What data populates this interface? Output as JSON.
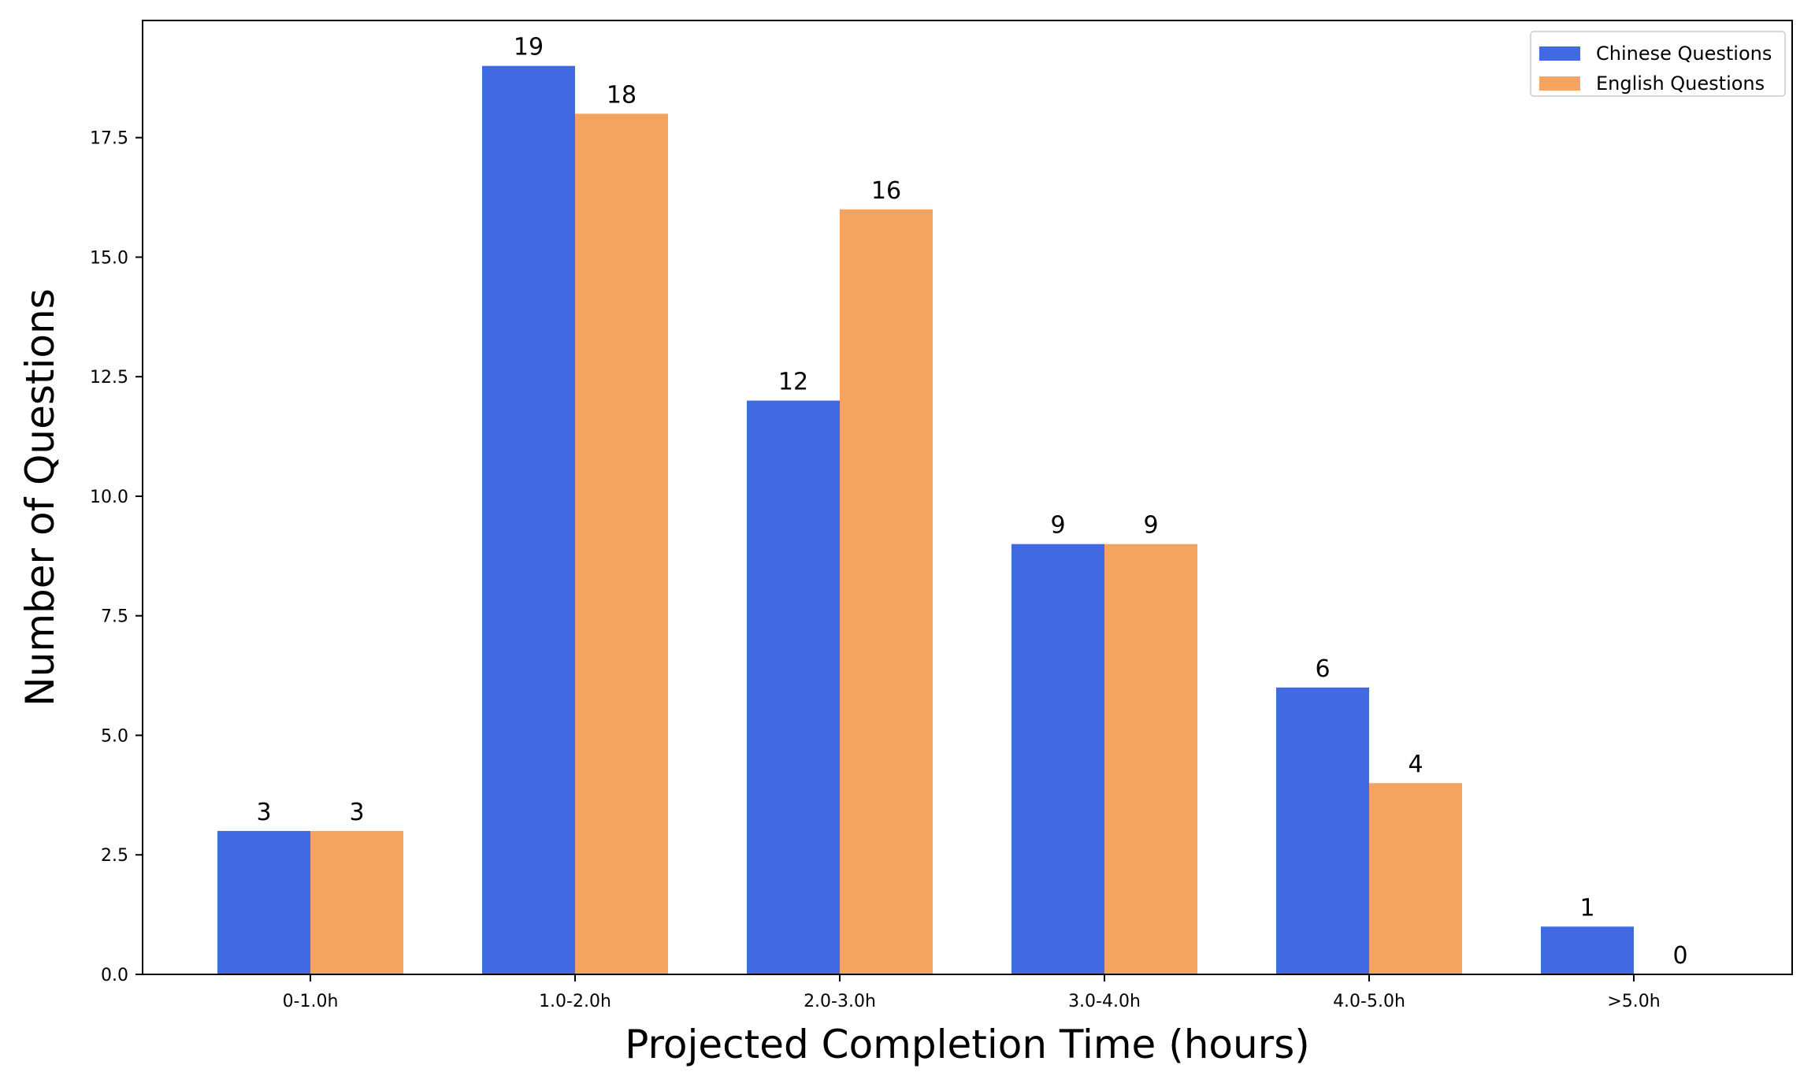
{
  "chart_data": {
    "type": "bar",
    "title": "",
    "xlabel": "Projected Completion Time (hours)",
    "ylabel": "Number of Questions",
    "categories": [
      "0-1.0h",
      "1.0-2.0h",
      "2.0-3.0h",
      "3.0-4.0h",
      "4.0-5.0h",
      ">5.0h"
    ],
    "series": [
      {
        "name": "Chinese Questions",
        "color": "#4169E1",
        "values": [
          3,
          19,
          12,
          9,
          6,
          1
        ]
      },
      {
        "name": "English Questions",
        "color": "#F4A460",
        "values": [
          3,
          18,
          16,
          9,
          4,
          0
        ]
      }
    ],
    "ylim": [
      0,
      19.95
    ],
    "yticks": [
      0,
      2.5,
      5,
      7.5,
      10,
      12.5,
      15,
      17.5
    ],
    "ytick_labels": [
      "0.0",
      "2.5",
      "5.0",
      "7.5",
      "10.0",
      "12.5",
      "15.0",
      "17.5"
    ],
    "grid": false,
    "legend_position": "top-right"
  }
}
